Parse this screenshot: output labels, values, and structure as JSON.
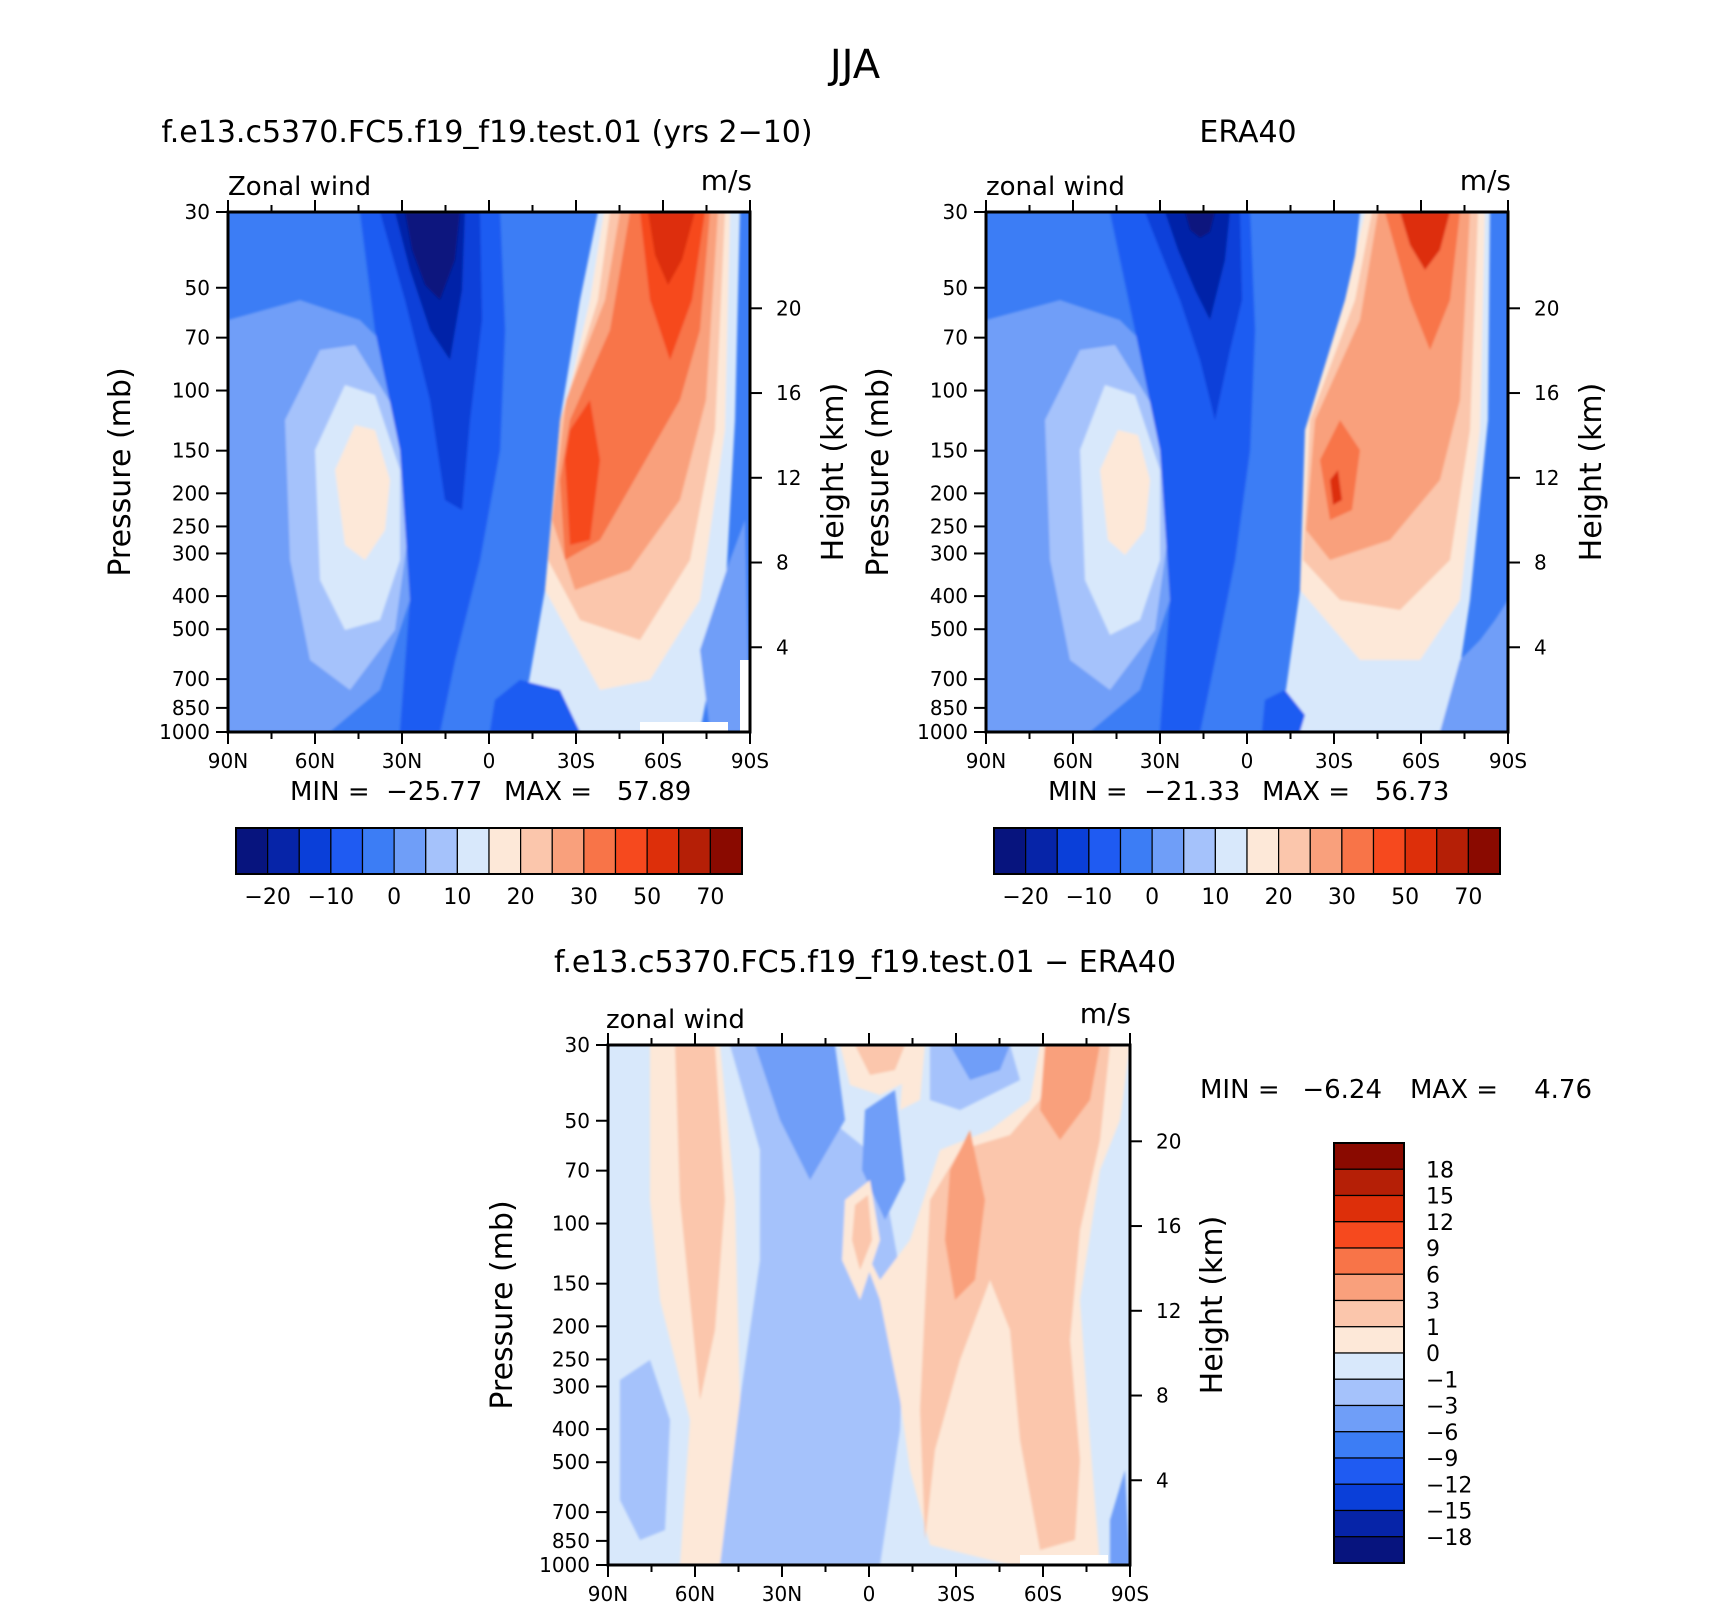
{
  "figure": {
    "title": "JJA"
  },
  "chart_data": [
    {
      "type": "contour",
      "title": "f.e13.c5370.FC5.f19_f19.test.01 (yrs 2−10)",
      "variable_label": "Zonal wind",
      "units_label": "m/s",
      "xlabel": "",
      "ylabel": "Pressure (mb)",
      "ylabel_right": "Height (km)",
      "x_ticks": [
        "90N",
        "60N",
        "30N",
        "0",
        "30S",
        "60S",
        "90S"
      ],
      "xlim": [
        90,
        -90
      ],
      "y_ticks": [
        30,
        50,
        70,
        100,
        150,
        200,
        250,
        300,
        400,
        500,
        700,
        850,
        1000
      ],
      "ylim": [
        1000,
        30
      ],
      "y_scale": "log",
      "height_ticks": [
        4,
        8,
        12,
        16,
        20
      ],
      "min_label": "MIN =  −25.77",
      "max_label": "MAX =   57.89",
      "min": -25.77,
      "max": 57.89,
      "colorbar": {
        "orientation": "horizontal",
        "tick_labels": [
          "−20",
          "−10",
          "0",
          "10",
          "20",
          "30",
          "50",
          "70"
        ],
        "colors": [
          "#07147e",
          "#0624a8",
          "#0a3fd9",
          "#1f5bf2",
          "#3c7df5",
          "#6f9ef8",
          "#a5c2fb",
          "#d8e8fb",
          "#fde8d8",
          "#fbc6ac",
          "#f9a07c",
          "#f87448",
          "#f6491e",
          "#dd2f0a",
          "#b51f06",
          "#8a0a00"
        ]
      },
      "contours": [
        {
          "level": "neg_bg",
          "color": "#3c7df5"
        },
        {
          "level": "neg_light",
          "color": "#6f9ef8"
        },
        {
          "level": "neg_lighter",
          "color": "#a5c2fb"
        },
        {
          "level": "near_zero",
          "color": "#d8e8fb"
        },
        {
          "level": "jet_core",
          "color": "#fde8d8"
        },
        {
          "level": "strong_neg",
          "color": "#1f5bf2"
        },
        {
          "level": "very_strong_neg",
          "color": "#0a3fd9"
        },
        {
          "level": "min_core",
          "color": "#07147e"
        },
        {
          "level": "pos_1",
          "color": "#fde8d8"
        },
        {
          "level": "pos_2",
          "color": "#fbc6ac"
        },
        {
          "level": "pos_3",
          "color": "#f9a07c"
        },
        {
          "level": "pos_4",
          "color": "#f87448"
        },
        {
          "level": "pos_5",
          "color": "#f6491e"
        },
        {
          "level": "pos_6",
          "color": "#dd2f0a"
        }
      ]
    },
    {
      "type": "contour",
      "title": "ERA40",
      "variable_label": "zonal wind",
      "units_label": "m/s",
      "xlabel": "",
      "ylabel": "Pressure (mb)",
      "ylabel_right": "Height (km)",
      "x_ticks": [
        "90N",
        "60N",
        "30N",
        "0",
        "30S",
        "60S",
        "90S"
      ],
      "xlim": [
        90,
        -90
      ],
      "y_ticks": [
        30,
        50,
        70,
        100,
        150,
        200,
        250,
        300,
        400,
        500,
        700,
        850,
        1000
      ],
      "ylim": [
        1000,
        30
      ],
      "y_scale": "log",
      "height_ticks": [
        4,
        8,
        12,
        16,
        20
      ],
      "min_label": "MIN =  −21.33",
      "max_label": "MAX =   56.73",
      "min": -21.33,
      "max": 56.73,
      "colorbar": {
        "orientation": "horizontal",
        "tick_labels": [
          "−20",
          "−10",
          "0",
          "10",
          "20",
          "30",
          "50",
          "70"
        ],
        "colors": [
          "#07147e",
          "#0624a8",
          "#0a3fd9",
          "#1f5bf2",
          "#3c7df5",
          "#6f9ef8",
          "#a5c2fb",
          "#d8e8fb",
          "#fde8d8",
          "#fbc6ac",
          "#f9a07c",
          "#f87448",
          "#f6491e",
          "#dd2f0a",
          "#b51f06",
          "#8a0a00"
        ]
      }
    },
    {
      "type": "contour",
      "title": "f.e13.c5370.FC5.f19_f19.test.01 − ERA40",
      "variable_label": "zonal wind",
      "units_label": "m/s",
      "xlabel": "",
      "ylabel": "Pressure (mb)",
      "ylabel_right": "Height (km)",
      "x_ticks": [
        "90N",
        "60N",
        "30N",
        "0",
        "30S",
        "60S",
        "90S"
      ],
      "xlim": [
        90,
        -90
      ],
      "y_ticks": [
        30,
        50,
        70,
        100,
        150,
        200,
        250,
        300,
        400,
        500,
        700,
        850,
        1000
      ],
      "ylim": [
        1000,
        30
      ],
      "y_scale": "log",
      "height_ticks": [
        4,
        8,
        12,
        16,
        20
      ],
      "min_label": "MIN =",
      "min_value": "−6.24",
      "max_label": "MAX =",
      "max_value": "4.76",
      "min": -6.24,
      "max": 4.76,
      "colorbar": {
        "orientation": "vertical",
        "tick_labels": [
          "18",
          "15",
          "12",
          "9",
          "6",
          "3",
          "1",
          "0",
          "−1",
          "−3",
          "−6",
          "−9",
          "−12",
          "−15",
          "−18"
        ],
        "colors": [
          "#8a0a00",
          "#b51f06",
          "#dd2f0a",
          "#f6491e",
          "#f87448",
          "#f9a07c",
          "#fbc6ac",
          "#fde8d8",
          "#d8e8fb",
          "#a5c2fb",
          "#6f9ef8",
          "#3c7df5",
          "#1f5bf2",
          "#0a3fd9",
          "#0624a8",
          "#07147e"
        ]
      }
    }
  ]
}
